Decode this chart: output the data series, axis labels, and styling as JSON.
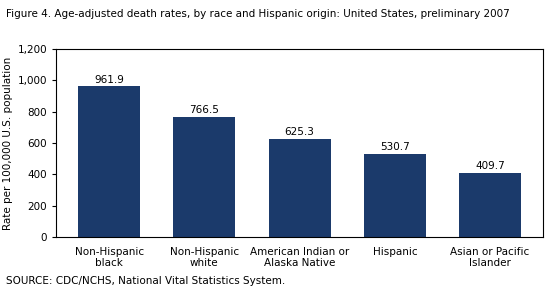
{
  "title": "Figure 4. Age-adjusted death rates, by race and Hispanic origin: United States, preliminary 2007",
  "categories": [
    "Non-Hispanic\nblack",
    "Non-Hispanic\nwhite",
    "American Indian or\nAlaska Native",
    "Hispanic",
    "Asian or Pacific\nIslander"
  ],
  "values": [
    961.9,
    766.5,
    625.3,
    530.7,
    409.7
  ],
  "bar_color": "#1b3a6b",
  "ylabel": "Rate per 100,000 U.S. population",
  "ylim": [
    0,
    1200
  ],
  "yticks": [
    0,
    200,
    400,
    600,
    800,
    1000,
    1200
  ],
  "ytick_labels": [
    "0",
    "200",
    "400",
    "600",
    "800",
    "1,000",
    "1,200"
  ],
  "source": "SOURCE: CDC/NCHS, National Vital Statistics System.",
  "title_fontsize": 7.5,
  "label_fontsize": 7.5,
  "value_fontsize": 7.5,
  "ylabel_fontsize": 7.5,
  "source_fontsize": 7.5,
  "bar_width": 0.65
}
